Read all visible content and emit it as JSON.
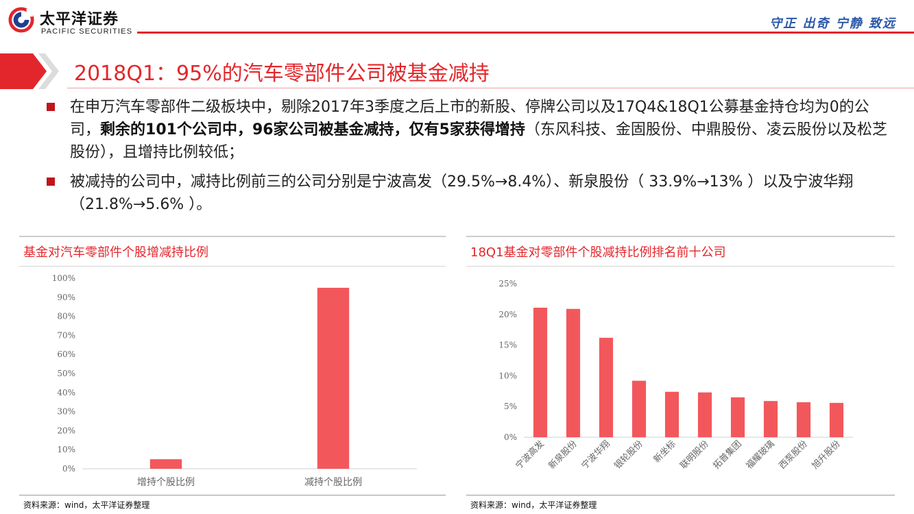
{
  "header": {
    "logo_cn": "太平洋证券",
    "logo_en": "PACIFIC SECURITIES",
    "motto": "守正 出奇 宁静 致远"
  },
  "title": "2018Q1：95%的汽车零部件公司被基金减持",
  "bullets": [
    {
      "pre": "在申万汽车零部件二级板块中，剔除2017年3季度之后上市的新股、停牌公司以及17Q4&18Q1公募基金持仓均为0的公司，",
      "bold": "剩余的101个公司中，96家公司被基金减持，仅有5家获得增持",
      "post": "（东风科技、金固股份、中鼎股份、凌云股份以及松芝股份），且增持比例较低；"
    },
    {
      "text": "被减持的公司中，减持比例前三的公司分别是宁波高发（29.5%→8.4%）、新泉股份（ 33.9%→13% ）以及宁波华翔（21.8%→5.6% ）。"
    }
  ],
  "colors": {
    "brand_red": "#e3262b",
    "bar": "#f2585b",
    "motto_blue": "#2a58a8"
  },
  "charts": {
    "left": {
      "title": "基金对汽车零部件个股增减持比例",
      "source": "资料来源：wind，太平洋证券整理"
    },
    "right": {
      "title": "18Q1基金对零部件个股减持比例排名前十公司",
      "source": "资料来源：wind，太平洋证券整理"
    }
  },
  "chart_data": [
    {
      "type": "bar",
      "title": "基金对汽车零部件个股增减持比例",
      "categories": [
        "增持个股比例",
        "减持个股比例"
      ],
      "values": [
        5,
        95
      ],
      "value_unit": "%",
      "ylim": [
        0,
        100
      ],
      "yticks": [
        0,
        10,
        20,
        30,
        40,
        50,
        60,
        70,
        80,
        90,
        100
      ],
      "grid": false
    },
    {
      "type": "bar",
      "title": "18Q1基金对零部件个股减持比例排名前十公司",
      "categories": [
        "宁波高发",
        "新泉股份",
        "宁波华翔",
        "银轮股份",
        "新坐标",
        "联明股份",
        "拓普集团",
        "福耀玻璃",
        "西泵股份",
        "旭升股份"
      ],
      "values": [
        21.1,
        20.9,
        16.2,
        9.2,
        7.4,
        7.3,
        6.5,
        5.9,
        5.7,
        5.6
      ],
      "value_unit": "%",
      "ylim": [
        0,
        25
      ],
      "yticks": [
        0,
        5,
        10,
        15,
        20,
        25
      ],
      "grid": false
    }
  ]
}
